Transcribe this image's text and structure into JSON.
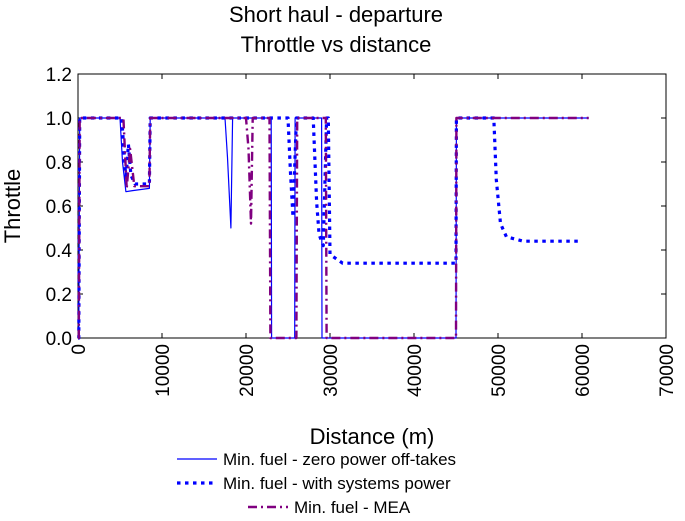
{
  "chart_data": {
    "type": "line",
    "title": "Short haul - departure",
    "subtitle": "Throttle vs distance",
    "xlabel": "Distance (m)",
    "ylabel": "Throttle",
    "xlim": [
      0,
      70000
    ],
    "ylim": [
      0,
      1.2
    ],
    "xticks": [
      0,
      10000,
      20000,
      30000,
      40000,
      50000,
      60000,
      70000
    ],
    "xtick_labels": [
      "0",
      "10000",
      "20000",
      "30000",
      "40000",
      "50000",
      "60000",
      "70000"
    ],
    "yticks": [
      0,
      0.2,
      0.4,
      0.6,
      0.8,
      1.0,
      1.2
    ],
    "ytick_labels": [
      "0.0",
      "0.2",
      "0.4",
      "0.6",
      "0.8",
      "1.0",
      "1.2"
    ],
    "grid": false,
    "legend_position": "bottom",
    "series": [
      {
        "name": "Min. fuel - zero power off-takes",
        "color": "#0000ff",
        "style": "solid",
        "x": [
          0,
          100,
          200,
          5000,
          5300,
          5700,
          6500,
          8500,
          8600,
          9000,
          17500,
          17800,
          18200,
          18400,
          18500,
          20000,
          22000,
          23000,
          23050,
          25800,
          25850,
          28000,
          29000,
          29050,
          45000,
          45050,
          50000,
          60000,
          60800
        ],
        "y": [
          0,
          0,
          1.0,
          1.0,
          0.8,
          0.665,
          0.67,
          0.68,
          1.0,
          1.0,
          1.0,
          0.82,
          0.5,
          1.0,
          1.0,
          1.0,
          1.0,
          1.0,
          0,
          0,
          1.0,
          1.0,
          1.0,
          0,
          0,
          1.0,
          1.0,
          1.0,
          1.0
        ]
      },
      {
        "name": "Min. fuel - with systems power",
        "color": "#0000ff",
        "style": "dotted",
        "x": [
          0,
          100,
          200,
          5200,
          5700,
          6000,
          6300,
          6800,
          7500,
          8500,
          8600,
          20000,
          23500,
          25000,
          25300,
          25600,
          26000,
          26300,
          28000,
          28400,
          28700,
          29200,
          29600,
          29800,
          30000,
          31500,
          35000,
          45000,
          45050,
          49500,
          49800,
          50300,
          51000,
          53000,
          60000
        ],
        "y": [
          0,
          0,
          1.0,
          1.0,
          0.72,
          0.88,
          0.74,
          0.7,
          0.7,
          0.7,
          1.0,
          1.0,
          1.0,
          1.0,
          0.75,
          0.55,
          1.0,
          1.0,
          1.0,
          0.62,
          0.47,
          0.42,
          1.0,
          1.0,
          0.38,
          0.34,
          0.34,
          0.34,
          1.0,
          1.0,
          0.72,
          0.52,
          0.46,
          0.44,
          0.44
        ]
      },
      {
        "name": "Min. fuel - MEA",
        "color": "#800080",
        "style": "dashdot",
        "x": [
          0,
          100,
          200,
          5400,
          5800,
          6200,
          6700,
          8000,
          8500,
          8600,
          20000,
          20300,
          20600,
          20800,
          22800,
          22900,
          22950,
          26000,
          26100,
          29500,
          29600,
          30000,
          45000,
          45050,
          60800
        ],
        "y": [
          0,
          0,
          1.0,
          1.0,
          0.68,
          0.86,
          0.69,
          0.69,
          0.69,
          1.0,
          1.0,
          0.86,
          0.52,
          1.0,
          1.0,
          0,
          0,
          0,
          1.0,
          1.0,
          0,
          0,
          0,
          1.0,
          1.0
        ]
      }
    ]
  }
}
